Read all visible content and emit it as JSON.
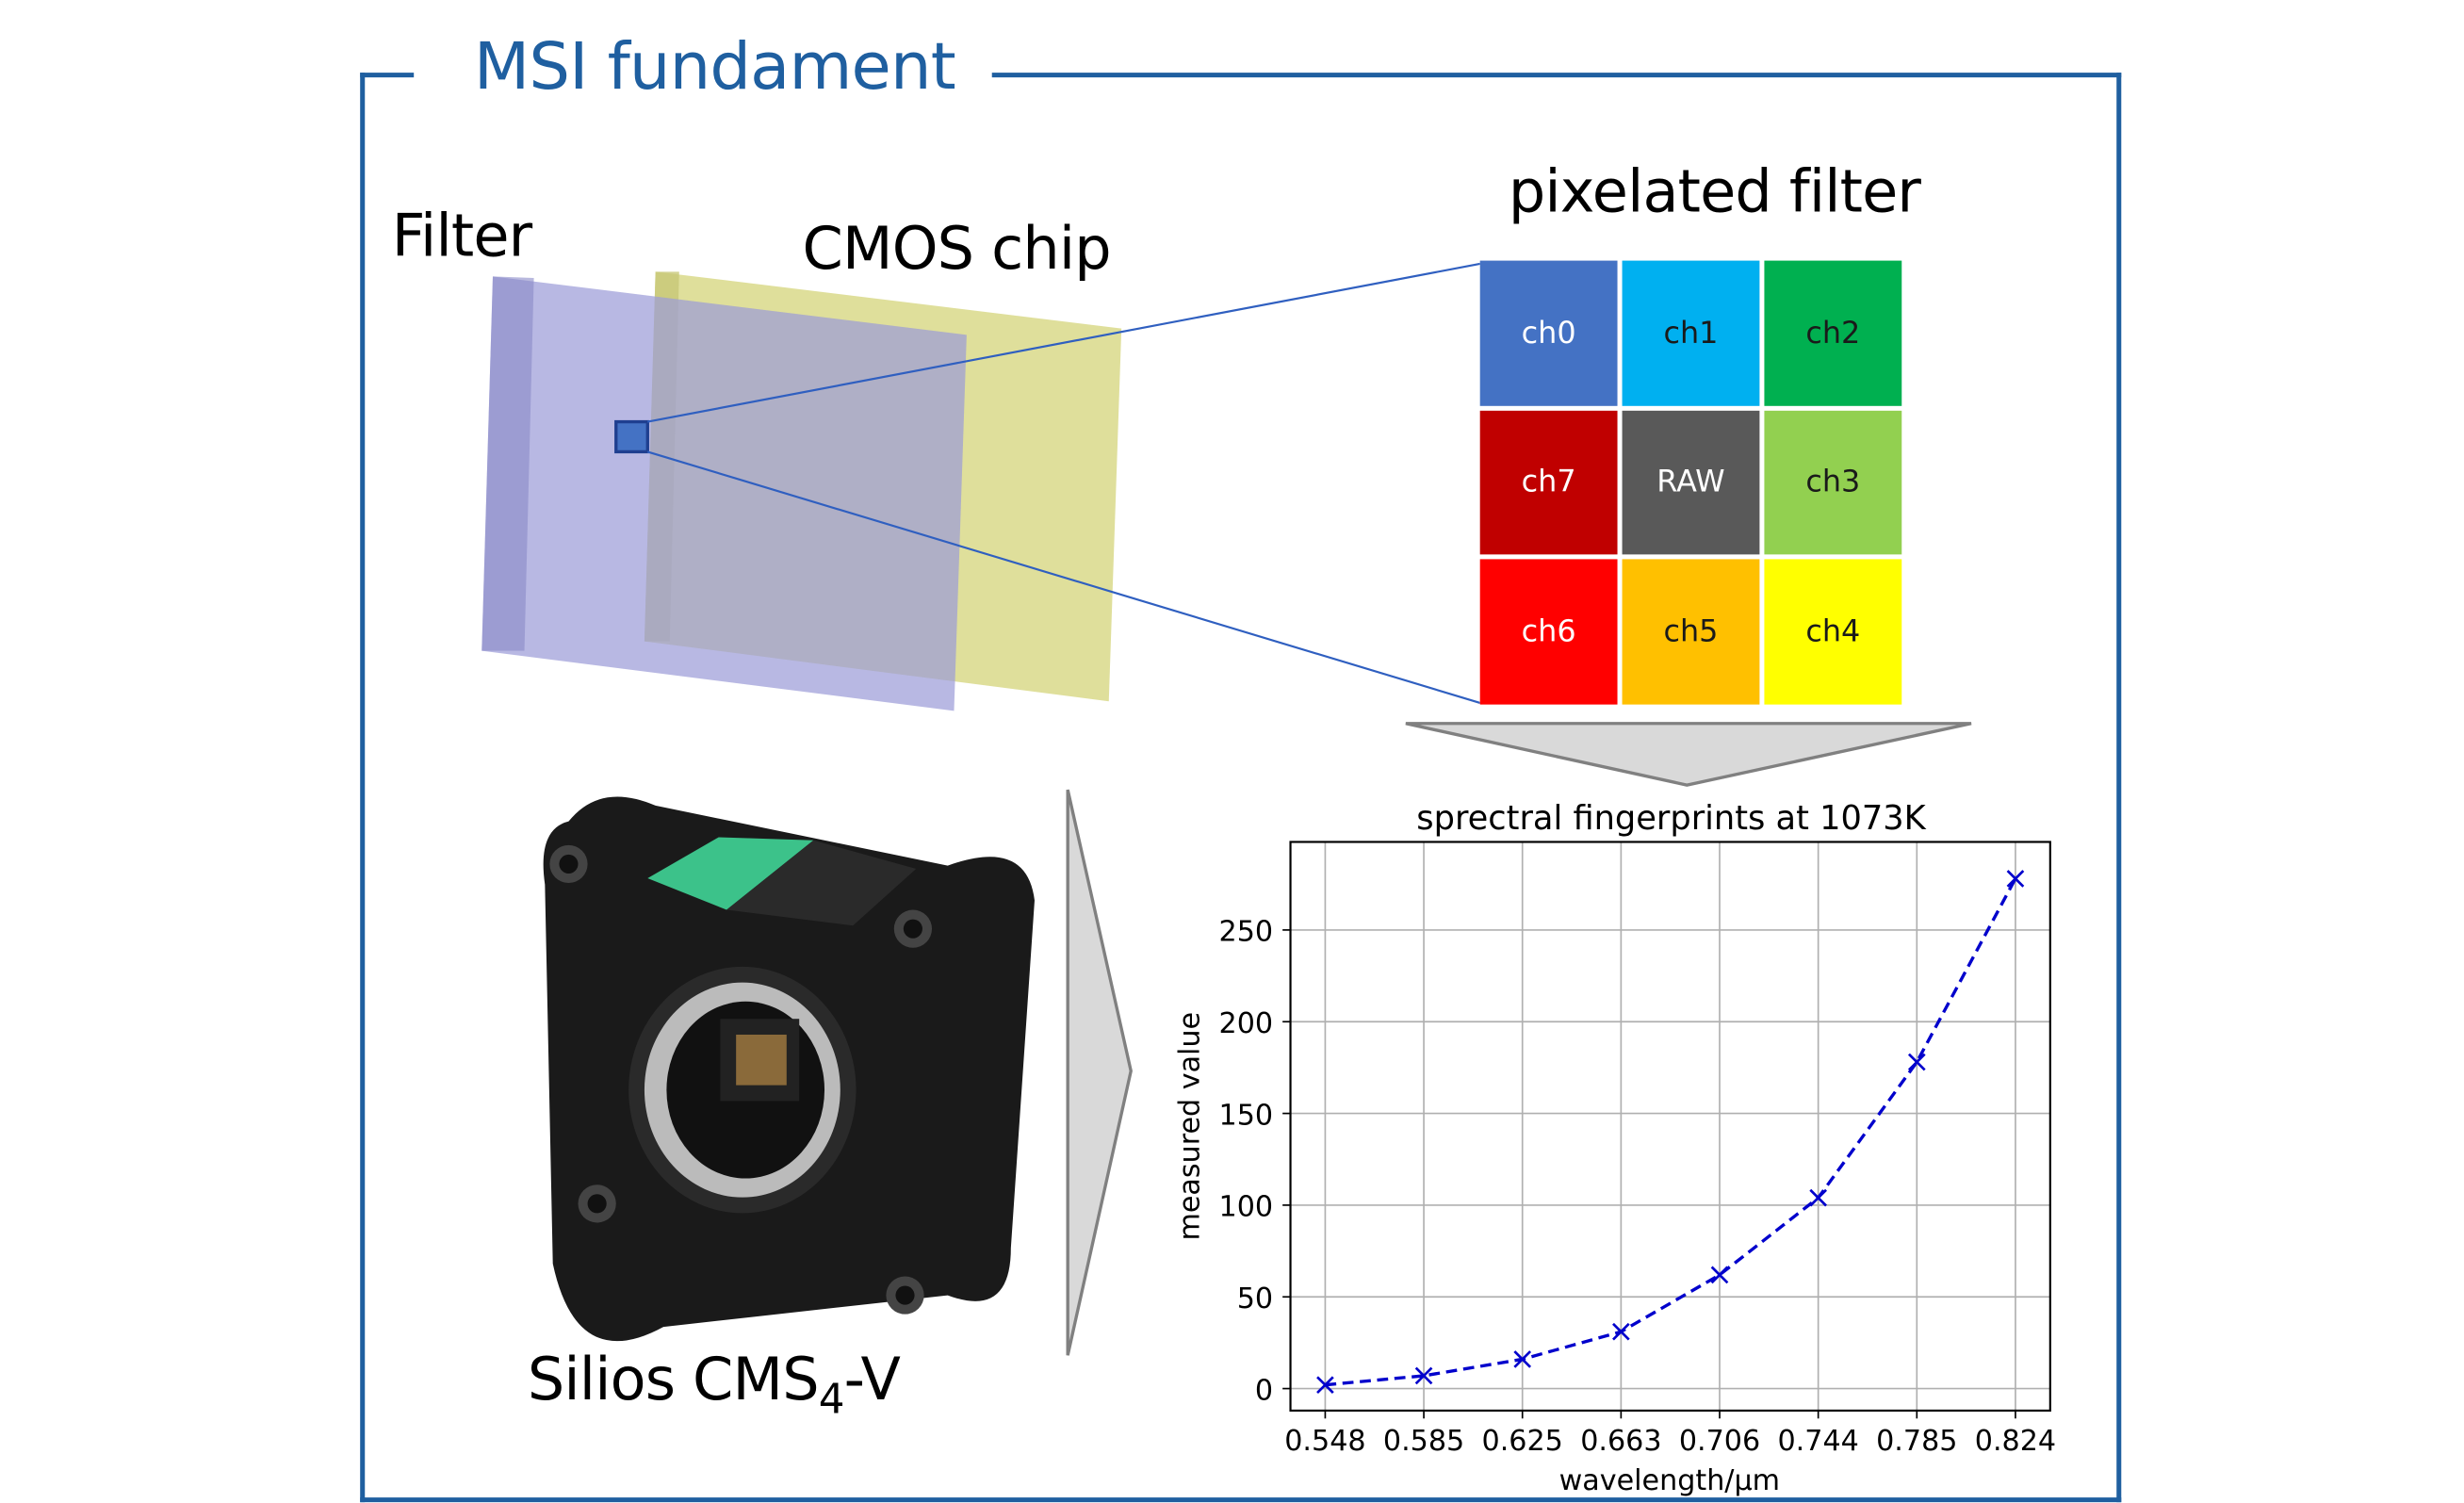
{
  "title": "MSI fundament",
  "labels": {
    "filter": "Filter",
    "cmos": "CMOS chip",
    "pixelated": "pixelated filter",
    "camera_prefix": "Silios CMS",
    "camera_sub": "4",
    "camera_suffix": "-V"
  },
  "colors": {
    "frame": "#1F5FA0",
    "line": "#2F5FC0",
    "series": "#0000CC"
  },
  "cells": [
    {
      "label": "ch0",
      "color": "#4472C4",
      "text": "#FFFFFF"
    },
    {
      "label": "ch1",
      "color": "#00B0F0",
      "text": "#1a1a1a"
    },
    {
      "label": "ch2",
      "color": "#00B050",
      "text": "#1a1a1a"
    },
    {
      "label": "ch7",
      "color": "#C00000",
      "text": "#FFFFFF"
    },
    {
      "label": "RAW",
      "color": "#595959",
      "text": "#FFFFFF"
    },
    {
      "label": "ch3",
      "color": "#92D050",
      "text": "#1a1a1a"
    },
    {
      "label": "ch6",
      "color": "#FF0000",
      "text": "#FFFFFF"
    },
    {
      "label": "ch5",
      "color": "#FFC000",
      "text": "#1a1a1a"
    },
    {
      "label": "ch4",
      "color": "#FFFF00",
      "text": "#1a1a1a"
    }
  ],
  "chart_data": {
    "type": "line",
    "title": "sprectral fingerprints at 1073K",
    "xlabel": "wavelength/µm",
    "ylabel": "measured value",
    "categories": [
      "0.548",
      "0.585",
      "0.625",
      "0.663",
      "0.706",
      "0.744",
      "0.785",
      "0.824"
    ],
    "values": [
      2,
      7,
      16,
      31,
      62,
      104,
      178,
      278
    ],
    "yticks": [
      0,
      50,
      100,
      150,
      200,
      250
    ],
    "ylim": [
      -12,
      298
    ],
    "grid": true,
    "line_style": "dashed",
    "marker": "x"
  }
}
